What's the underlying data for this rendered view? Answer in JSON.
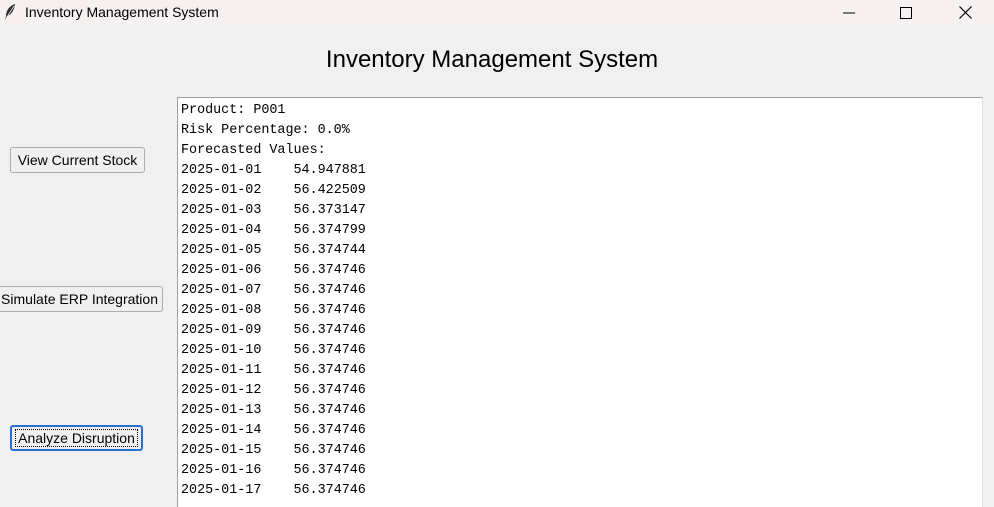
{
  "window": {
    "title": "Inventory Management System",
    "controls": [
      "minimize",
      "maximize",
      "close"
    ]
  },
  "header": {
    "title": "Inventory Management System"
  },
  "sidebar": {
    "view_stock_label": "View Current Stock",
    "simulate_erp_label": "Simulate ERP Integration",
    "analyze_label": "Analyze Disruption"
  },
  "output": {
    "product_line": "Product: P001",
    "risk_line": "Risk Percentage: 0.0%",
    "forecast_header": "Forecasted Values:",
    "forecast": [
      {
        "date": "2025-01-01",
        "value": "54.947881"
      },
      {
        "date": "2025-01-02",
        "value": "56.422509"
      },
      {
        "date": "2025-01-03",
        "value": "56.373147"
      },
      {
        "date": "2025-01-04",
        "value": "56.374799"
      },
      {
        "date": "2025-01-05",
        "value": "56.374744"
      },
      {
        "date": "2025-01-06",
        "value": "56.374746"
      },
      {
        "date": "2025-01-07",
        "value": "56.374746"
      },
      {
        "date": "2025-01-08",
        "value": "56.374746"
      },
      {
        "date": "2025-01-09",
        "value": "56.374746"
      },
      {
        "date": "2025-01-10",
        "value": "56.374746"
      },
      {
        "date": "2025-01-11",
        "value": "56.374746"
      },
      {
        "date": "2025-01-12",
        "value": "56.374746"
      },
      {
        "date": "2025-01-13",
        "value": "56.374746"
      },
      {
        "date": "2025-01-14",
        "value": "56.374746"
      },
      {
        "date": "2025-01-15",
        "value": "56.374746"
      },
      {
        "date": "2025-01-16",
        "value": "56.374746"
      },
      {
        "date": "2025-01-17",
        "value": "56.374746"
      }
    ]
  }
}
